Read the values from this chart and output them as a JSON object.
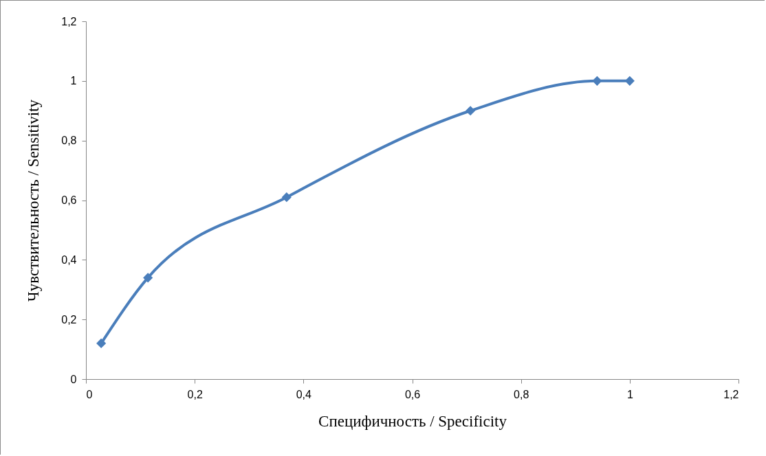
{
  "chart_data": {
    "type": "line",
    "xlabel": "Специфичность / Specificity",
    "ylabel": "Чувствительность / Sensitivity",
    "x": [
      0.028,
      0.114,
      0.369,
      0.707,
      0.94,
      1.0
    ],
    "series": [
      {
        "color": "#4a7ebb",
        "values": [
          0.12,
          0.34,
          0.61,
          0.9,
          1.0,
          1.0
        ]
      }
    ],
    "xlim": [
      0,
      1.2
    ],
    "ylim": [
      0,
      1.2
    ],
    "xticks": [
      0,
      {
        "value": 0.2,
        "label": "0,2"
      },
      {
        "value": 0.4,
        "label": "0,4"
      },
      {
        "value": 0.6,
        "label": "0,6"
      },
      {
        "value": 0.8,
        "label": "0,8"
      },
      1,
      {
        "value": 1.2,
        "label": "1,2"
      }
    ],
    "yticks": [
      0,
      {
        "value": 0.2,
        "label": "0,2"
      },
      {
        "value": 0.4,
        "label": "0,4"
      },
      {
        "value": 0.6,
        "label": "0,6"
      },
      {
        "value": 0.8,
        "label": "0,8"
      },
      1,
      {
        "value": 1.2,
        "label": "1,2"
      }
    ],
    "grid": false,
    "marker": "diamond",
    "line_style": "solid"
  }
}
